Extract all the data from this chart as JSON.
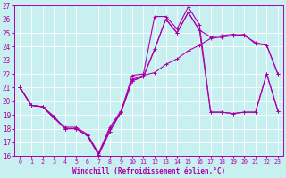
{
  "xlabel": "Windchill (Refroidissement éolien,°C)",
  "background_color": "#c8f0f0",
  "line_color": "#aa00aa",
  "ylim": [
    16,
    27
  ],
  "xlim": [
    -0.5,
    23.5
  ],
  "yticks": [
    16,
    17,
    18,
    19,
    20,
    21,
    22,
    23,
    24,
    25,
    26,
    27
  ],
  "xticks": [
    0,
    1,
    2,
    3,
    4,
    5,
    6,
    7,
    8,
    9,
    10,
    11,
    12,
    13,
    14,
    15,
    16,
    17,
    18,
    19,
    20,
    21,
    22,
    23
  ],
  "series": [
    {
      "x": [
        0,
        1,
        2,
        3,
        4,
        5,
        6,
        7,
        8,
        9,
        10,
        11,
        12,
        13,
        14,
        15,
        16,
        17,
        18,
        19,
        20,
        21,
        22,
        23
      ],
      "y": [
        21.0,
        19.7,
        19.6,
        18.9,
        18.0,
        18.0,
        17.5,
        16.1,
        17.8,
        19.2,
        21.5,
        21.8,
        23.8,
        26.0,
        25.0,
        26.5,
        25.2,
        24.7,
        24.8,
        24.9,
        24.8,
        24.3,
        24.1,
        22.0
      ]
    },
    {
      "x": [
        0,
        1,
        2,
        3,
        4,
        5,
        6,
        7,
        8,
        9,
        10,
        11,
        12,
        13,
        14,
        15,
        16,
        17,
        18,
        19,
        20,
        21,
        22,
        23
      ],
      "y": [
        21.0,
        19.7,
        19.6,
        18.8,
        18.0,
        18.0,
        17.5,
        16.1,
        18.0,
        19.2,
        21.5,
        21.8,
        23.8,
        26.0,
        25.0,
        26.5,
        25.2,
        19.2,
        19.2,
        19.1,
        19.2,
        19.2,
        22.0,
        19.3
      ]
    },
    {
      "x": [
        0,
        1,
        2,
        3,
        4,
        5,
        6,
        7,
        8,
        9,
        10,
        11,
        12,
        13,
        14,
        15,
        16,
        17,
        18,
        19,
        20,
        21,
        22,
        23
      ],
      "y": [
        21.0,
        19.7,
        19.6,
        18.8,
        18.1,
        18.1,
        17.6,
        16.2,
        18.1,
        19.3,
        21.6,
        21.9,
        22.1,
        22.7,
        23.1,
        23.7,
        24.1,
        24.6,
        24.7,
        24.8,
        24.9,
        24.2,
        24.1,
        22.0
      ]
    },
    {
      "x": [
        0,
        1,
        2,
        3,
        4,
        5,
        6,
        7,
        8,
        9,
        10,
        11,
        12,
        13,
        14,
        15,
        16,
        17,
        18,
        19,
        20,
        21,
        22,
        23
      ],
      "y": [
        21.0,
        19.7,
        19.6,
        18.9,
        18.0,
        18.0,
        17.5,
        16.1,
        17.8,
        19.2,
        21.9,
        22.0,
        26.2,
        26.2,
        25.3,
        26.9,
        25.6,
        19.2,
        19.2,
        19.1,
        19.2,
        19.2,
        22.0,
        19.3
      ]
    }
  ]
}
